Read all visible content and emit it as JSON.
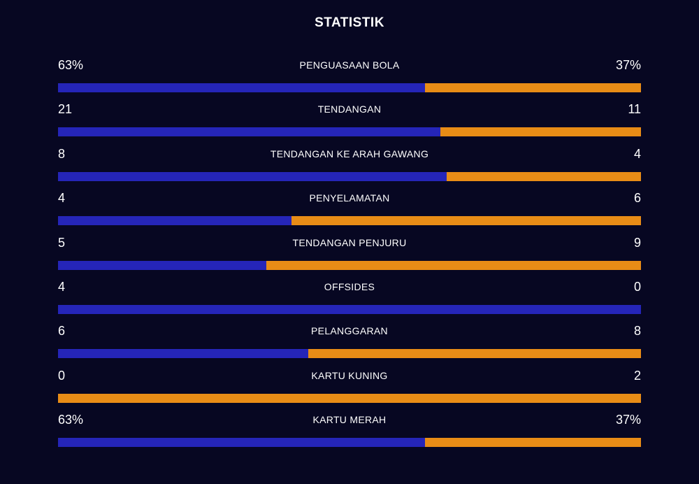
{
  "title": "STATISTIK",
  "colors": {
    "background": "#070722",
    "home": "#2525b8",
    "away": "#e88c16"
  },
  "stats": [
    {
      "label": "PENGUASAAN BOLA",
      "home": "63%",
      "away": "37%",
      "home_fraction": 0.63
    },
    {
      "label": "TENDANGAN",
      "home": "21",
      "away": "11",
      "home_fraction": 0.656
    },
    {
      "label": "TENDANGAN KE ARAH GAWANG",
      "home": "8",
      "away": "4",
      "home_fraction": 0.667
    },
    {
      "label": "PENYELAMATAN",
      "home": "4",
      "away": "6",
      "home_fraction": 0.4
    },
    {
      "label": "TENDANGAN PENJURU",
      "home": "5",
      "away": "9",
      "home_fraction": 0.357
    },
    {
      "label": "OFFSIDES",
      "home": "4",
      "away": "0",
      "home_fraction": 1.0
    },
    {
      "label": "PELANGGARAN",
      "home": "6",
      "away": "8",
      "home_fraction": 0.429
    },
    {
      "label": "KARTU KUNING",
      "home": "0",
      "away": "2",
      "home_fraction": 0.0
    },
    {
      "label": "KARTU MERAH",
      "home": "63%",
      "away": "37%",
      "home_fraction": 0.63
    }
  ]
}
